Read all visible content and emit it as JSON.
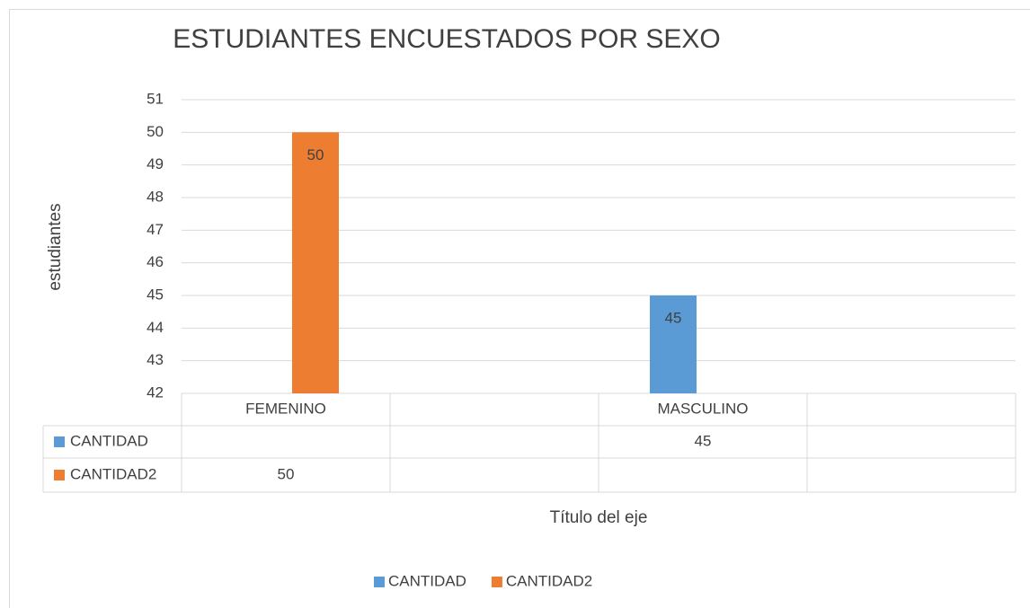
{
  "chart_data": {
    "type": "bar",
    "title": "ESTUDIANTES ENCUESTADOS POR SEXO",
    "y_label": "estudiantes",
    "x_label": "Título del eje",
    "categories": [
      "FEMENINO",
      null,
      "MASCULINO",
      null
    ],
    "series": [
      {
        "name": "CANTIDAD",
        "color": "#5b9bd5",
        "values": [
          null,
          null,
          45,
          null
        ]
      },
      {
        "name": "CANTIDAD2",
        "color": "#ed7d31",
        "values": [
          50,
          null,
          null,
          null
        ]
      }
    ],
    "ylim": [
      42,
      51
    ],
    "yticks": [
      42,
      43,
      44,
      45,
      46,
      47,
      48,
      49,
      50,
      51
    ],
    "grid": true,
    "legend": "bottom",
    "data_table": true
  }
}
